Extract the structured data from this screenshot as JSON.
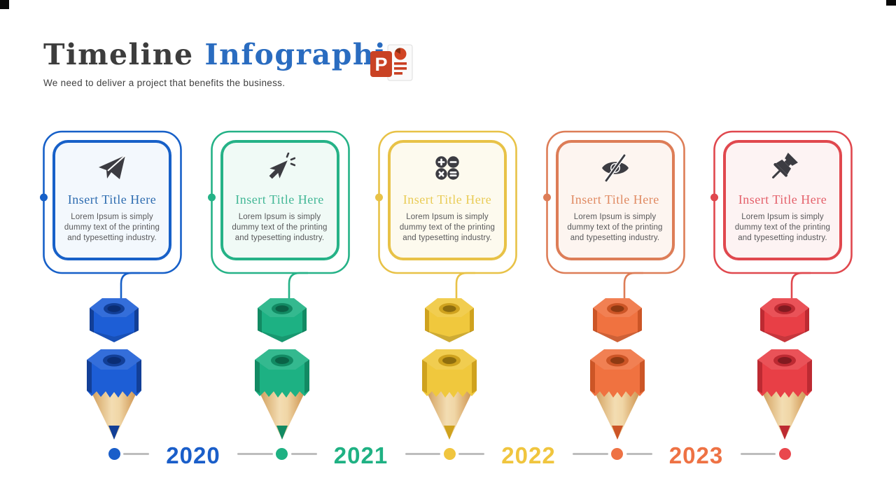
{
  "header": {
    "title_primary": "Timeline",
    "title_accent": "Infographic",
    "title_primary_color": "#3d3d3d",
    "title_accent_color": "#2a6cc0",
    "subtitle": "We need to deliver a project that benefits the business.",
    "logo": "powerpoint-logo",
    "logo_letter": "P",
    "logo_color": "#c94224"
  },
  "units": [
    {
      "icon": "paper-plane-icon",
      "title": "Insert Title Here",
      "body": "Lorem Ipsum is simply dummy text of the printing and typesetting industry.",
      "colors": {
        "line": "#1760c8",
        "title": "#2e6cb0",
        "bg": "#f3f8fd",
        "pencil_main": "#1d5ed6",
        "pencil_dark": "#123f97",
        "pencil_deep": "#0a2d74",
        "year": "#1a5ec9"
      }
    },
    {
      "icon": "cursor-click-icon",
      "title": "Insert Title Here",
      "body": "Lorem Ipsum is simply dummy text of the printing and typesetting industry.",
      "colors": {
        "line": "#25b287",
        "title": "#42b796",
        "bg": "#f0faf6",
        "pencil_main": "#1db183",
        "pencil_dark": "#128a63",
        "pencil_deep": "#0a6246",
        "year": "#1fb183"
      }
    },
    {
      "icon": "math-operations-icon",
      "title": "Insert Title Here",
      "body": "Lorem Ipsum is simply dummy text of the printing and typesetting industry.",
      "colors": {
        "line": "#e8c247",
        "title": "#e9cb55",
        "bg": "#fdfaee",
        "pencil_main": "#f0c83d",
        "pencil_dark": "#cfa21e",
        "pencil_deep": "#8f6e0e",
        "year": "#f0c53e"
      }
    },
    {
      "icon": "eye-hidden-icon",
      "title": "Insert Title Here",
      "body": "Lorem Ipsum is simply dummy text of the printing and typesetting industry.",
      "colors": {
        "line": "#dd7d57",
        "title": "#e08a62",
        "bg": "#fdf5f0",
        "pencil_main": "#f07240",
        "pencil_dark": "#cc5526",
        "pencil_deep": "#8f3a12",
        "year": "#ee7244"
      }
    },
    {
      "icon": "push-pin-icon",
      "title": "Insert Title Here",
      "body": "Lorem Ipsum is simply dummy text of the printing and typesetting industry.",
      "colors": {
        "line": "#e0484e",
        "title": "#e4606a",
        "bg": "#fdf3f3",
        "pencil_main": "#e83f46",
        "pencil_dark": "#bd2a32",
        "pencil_deep": "#821a20",
        "year": "#e9474d"
      }
    }
  ],
  "timeline": {
    "line_color": "#bdbdbd",
    "years": [
      {
        "label": "2020",
        "color": "#1a5ec9"
      },
      {
        "label": "2021",
        "color": "#1fb183"
      },
      {
        "label": "2022",
        "color": "#f0c53e"
      },
      {
        "label": "2023",
        "color": "#ee7244"
      }
    ]
  }
}
